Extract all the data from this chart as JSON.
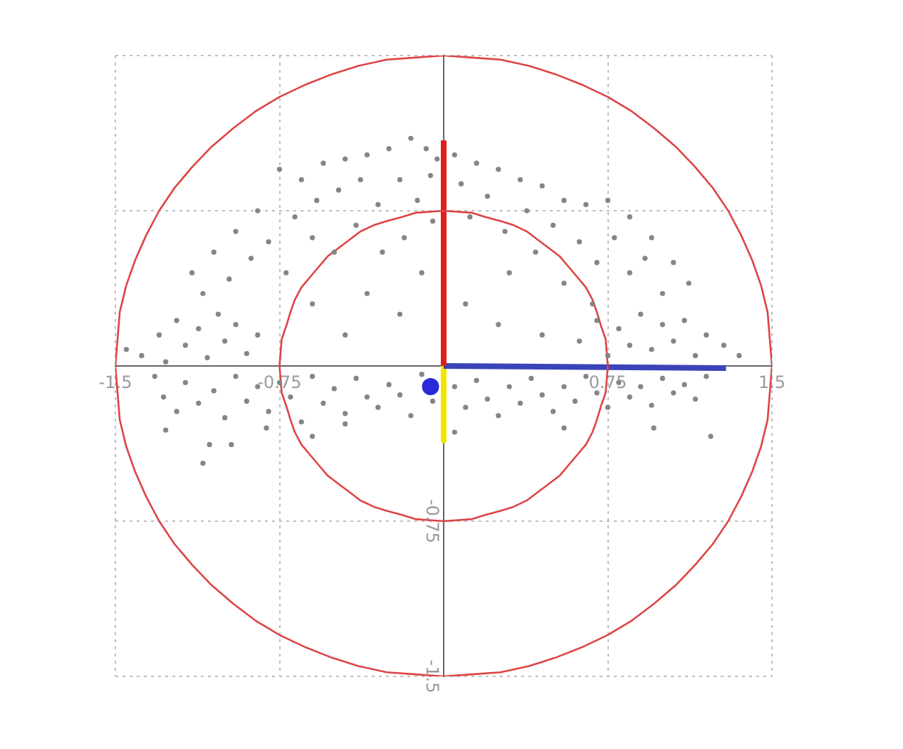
{
  "chart_data": {
    "type": "scatter",
    "xlim": [
      -1.5,
      1.5
    ],
    "ylim": [
      -1.5,
      1.5
    ],
    "xticks": [
      -1.5,
      -0.75,
      0.75,
      1.5
    ],
    "yticks": [
      -1.5,
      -0.75,
      {
        "value": 0.75,
        "label": null
      },
      {
        "value": 1.5,
        "label": null
      }
    ],
    "grid": true,
    "marker": "circle",
    "series": [
      {
        "type": "scatter",
        "color": "#858585",
        "x": [
          -1.32,
          -1.28,
          -1.22,
          -1.18,
          -1.12,
          -1.05,
          -1.0,
          -0.95,
          -0.9,
          -0.85,
          -0.8,
          -0.75,
          -0.7,
          -0.65,
          -0.6,
          -0.55,
          -0.5,
          -0.45,
          -0.4,
          -0.35,
          -0.3,
          -0.25,
          -0.2,
          -0.15,
          -0.1,
          -0.05,
          0.05,
          0.1,
          0.15,
          0.2,
          0.25,
          0.3,
          0.35,
          0.4,
          0.45,
          0.5,
          0.55,
          0.6,
          0.65,
          0.7,
          0.75,
          0.8,
          0.85,
          0.9,
          0.95,
          1.0,
          1.05,
          1.1,
          1.15,
          1.2,
          -1.38,
          -1.3,
          -1.27,
          -1.22,
          -1.18,
          -1.12,
          -1.08,
          -1.03,
          -1.0,
          -0.95,
          -0.9,
          -0.85,
          -1.45,
          -1.15,
          -1.05,
          -0.95,
          -0.85,
          -0.75,
          -0.65,
          -0.55,
          -0.45,
          -0.35,
          -0.25,
          -0.15,
          -0.08,
          -0.03,
          0.05,
          0.15,
          0.25,
          0.35,
          0.45,
          0.55,
          0.65,
          0.75,
          0.85,
          0.95,
          1.05,
          1.12,
          -1.1,
          -0.98,
          -0.88,
          -0.8,
          -0.72,
          -0.68,
          -0.6,
          -0.58,
          -0.5,
          -0.48,
          -0.4,
          -0.38,
          -0.3,
          -0.28,
          -0.2,
          -0.18,
          -0.12,
          -0.06,
          -0.05,
          -0.1,
          0.08,
          0.12,
          0.2,
          0.28,
          0.3,
          0.38,
          0.42,
          0.5,
          0.55,
          0.62,
          0.7,
          0.78,
          0.85,
          0.92,
          1.0,
          -0.35,
          -0.2,
          0.1,
          0.25,
          -0.45,
          0.45,
          -0.6,
          0.62,
          0.7,
          0.75,
          0.8,
          0.85,
          0.9,
          0.95,
          1.0,
          1.05,
          1.1,
          1.15,
          1.2,
          1.28,
          1.35,
          0.68,
          -1.27,
          -1.07,
          -0.97,
          -0.81,
          -0.6,
          -0.45,
          1.22,
          0.96,
          -1.1,
          0.55,
          0.05
        ],
        "values": [
          -0.05,
          -0.15,
          -0.22,
          -0.08,
          -0.18,
          -0.12,
          -0.25,
          -0.05,
          -0.17,
          -0.1,
          -0.22,
          -0.08,
          -0.15,
          -0.27,
          -0.05,
          -0.18,
          -0.11,
          -0.23,
          -0.06,
          -0.15,
          -0.2,
          -0.09,
          -0.14,
          -0.24,
          -0.04,
          -0.17,
          -0.1,
          -0.2,
          -0.07,
          -0.16,
          -0.24,
          -0.1,
          -0.18,
          -0.06,
          -0.14,
          -0.22,
          -0.1,
          -0.17,
          -0.05,
          -0.13,
          -0.2,
          -0.08,
          -0.15,
          -0.1,
          -0.19,
          -0.06,
          -0.13,
          -0.09,
          -0.16,
          -0.05,
          0.05,
          0.15,
          0.02,
          0.22,
          0.1,
          0.18,
          0.04,
          0.25,
          0.12,
          0.2,
          0.06,
          0.15,
          0.08,
          0.45,
          0.55,
          0.65,
          0.75,
          0.95,
          0.9,
          0.98,
          1.0,
          1.02,
          1.05,
          1.1,
          1.05,
          1.0,
          1.02,
          0.98,
          0.95,
          0.9,
          0.87,
          0.8,
          0.78,
          0.8,
          0.72,
          0.62,
          0.5,
          0.4,
          0.35,
          0.42,
          0.52,
          0.6,
          0.45,
          0.72,
          0.62,
          0.8,
          0.55,
          0.85,
          0.68,
          0.9,
          0.78,
          0.55,
          0.9,
          0.62,
          0.8,
          0.92,
          0.7,
          0.45,
          0.88,
          0.72,
          0.82,
          0.65,
          0.45,
          0.75,
          0.55,
          0.68,
          0.4,
          0.6,
          0.5,
          0.62,
          0.45,
          0.52,
          0.35,
          0.35,
          0.25,
          0.3,
          0.2,
          0.15,
          0.15,
          0.3,
          0.12,
          0.22,
          0.05,
          0.18,
          0.1,
          0.25,
          0.08,
          0.2,
          0.12,
          0.22,
          0.05,
          0.15,
          0.1,
          0.05,
          0.3,
          -0.31,
          -0.38,
          -0.38,
          -0.3,
          -0.34,
          -0.28,
          -0.34,
          -0.3,
          -0.47,
          -0.3,
          -0.32
        ]
      },
      {
        "type": "line",
        "color": "#dd4444",
        "marker": "none",
        "x": [
          -1.5,
          -1.49,
          -1.48,
          -1.45,
          -1.41,
          -1.36,
          -1.3,
          -1.23,
          -1.15,
          -1.06,
          -0.96,
          -0.86,
          -0.75,
          -0.63,
          -0.51,
          -0.39,
          -0.26,
          -0.13,
          0,
          0.13,
          0.26,
          0.39,
          0.51,
          0.63,
          0.75,
          0.86,
          0.96,
          1.06,
          1.15,
          1.23,
          1.3,
          1.36,
          1.41,
          1.45,
          1.48,
          1.49,
          1.5
        ],
        "values": [
          0,
          0.13,
          0.26,
          0.39,
          0.51,
          0.63,
          0.75,
          0.86,
          0.96,
          1.06,
          1.15,
          1.23,
          1.3,
          1.36,
          1.41,
          1.45,
          1.48,
          1.49,
          1.5,
          1.49,
          1.48,
          1.45,
          1.41,
          1.36,
          1.3,
          1.23,
          1.15,
          1.06,
          0.96,
          0.86,
          0.75,
          0.63,
          0.51,
          0.39,
          0.26,
          0.13,
          0
        ]
      },
      {
        "type": "line",
        "color": "#dd4444",
        "marker": "none",
        "x": [
          -1.5,
          -1.49,
          -1.48,
          -1.45,
          -1.41,
          -1.36,
          -1.3,
          -1.23,
          -1.15,
          -1.06,
          -0.96,
          -0.86,
          -0.75,
          -0.63,
          -0.51,
          -0.39,
          -0.26,
          -0.13,
          0,
          0.13,
          0.26,
          0.39,
          0.51,
          0.63,
          0.75,
          0.86,
          0.96,
          1.06,
          1.15,
          1.23,
          1.3,
          1.36,
          1.41,
          1.45,
          1.48,
          1.49,
          1.5
        ],
        "values": [
          0,
          -0.13,
          -0.26,
          -0.39,
          -0.51,
          -0.63,
          -0.75,
          -0.86,
          -0.96,
          -1.06,
          -1.15,
          -1.23,
          -1.3,
          -1.36,
          -1.41,
          -1.45,
          -1.48,
          -1.49,
          -1.5,
          -1.49,
          -1.48,
          -1.45,
          -1.41,
          -1.36,
          -1.3,
          -1.23,
          -1.15,
          -1.06,
          -0.96,
          -0.86,
          -0.75,
          -0.63,
          -0.51,
          -0.39,
          -0.26,
          -0.13,
          0
        ]
      },
      {
        "type": "line",
        "color": "#dd4444",
        "marker": "none",
        "x": [
          -0.75,
          -0.74,
          -0.72,
          -0.7,
          -0.68,
          -0.65,
          -0.61,
          -0.57,
          -0.53,
          -0.48,
          -0.43,
          -0.38,
          -0.32,
          -0.26,
          -0.19,
          -0.13,
          0,
          0.13,
          0.19,
          0.26,
          0.32,
          0.38,
          0.43,
          0.48,
          0.53,
          0.57,
          0.61,
          0.65,
          0.68,
          0.7,
          0.72,
          0.74,
          0.75
        ],
        "values": [
          0,
          0.13,
          0.19,
          0.26,
          0.32,
          0.38,
          0.43,
          0.48,
          0.53,
          0.57,
          0.61,
          0.65,
          0.68,
          0.7,
          0.72,
          0.74,
          0.75,
          0.74,
          0.72,
          0.7,
          0.68,
          0.65,
          0.61,
          0.57,
          0.53,
          0.48,
          0.43,
          0.38,
          0.32,
          0.26,
          0.19,
          0.13,
          0
        ]
      },
      {
        "type": "line",
        "color": "#dd4444",
        "marker": "none",
        "x": [
          -0.75,
          -0.74,
          -0.72,
          -0.7,
          -0.68,
          -0.65,
          -0.61,
          -0.57,
          -0.53,
          -0.48,
          -0.43,
          -0.38,
          -0.32,
          -0.26,
          -0.19,
          -0.13,
          0,
          0.13,
          0.19,
          0.26,
          0.32,
          0.38,
          0.43,
          0.48,
          0.53,
          0.57,
          0.61,
          0.65,
          0.68,
          0.7,
          0.72,
          0.74,
          0.75
        ],
        "values": [
          0,
          -0.13,
          -0.19,
          -0.26,
          -0.32,
          -0.38,
          -0.43,
          -0.48,
          -0.53,
          -0.57,
          -0.61,
          -0.65,
          -0.68,
          -0.7,
          -0.72,
          -0.74,
          -0.75,
          -0.74,
          -0.72,
          -0.7,
          -0.68,
          -0.65,
          -0.61,
          -0.57,
          -0.53,
          -0.48,
          -0.43,
          -0.38,
          -0.32,
          -0.26,
          -0.19,
          -0.13,
          0
        ]
      },
      {
        "type": "line",
        "color": "#e01e1e",
        "marker": "none",
        "x": [
          0,
          0
        ],
        "values": [
          0,
          1.09
        ]
      },
      {
        "type": "line",
        "color": "#3a44b8",
        "marker": "none",
        "x": [
          0,
          1.29
        ],
        "values": [
          0,
          -0.01
        ]
      },
      {
        "type": "line",
        "color": "#f2e600",
        "marker": "none",
        "x": [
          0,
          0
        ],
        "values": [
          0,
          -0.36
        ]
      },
      {
        "type": "scatter",
        "color": "#2a2ad8",
        "x": [
          -0.06
        ],
        "values": [
          -0.1
        ]
      }
    ]
  }
}
